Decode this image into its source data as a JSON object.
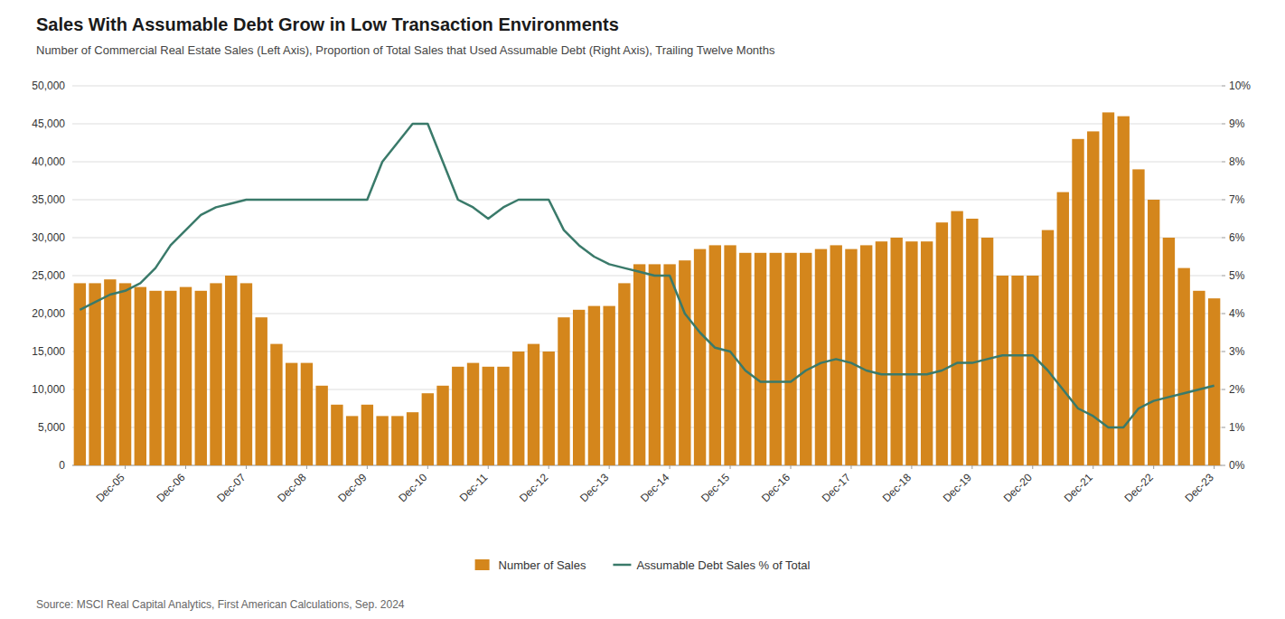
{
  "chart_data": {
    "type": "bar",
    "title": "Sales With Assumable Debt Grow in Low Transaction Environments",
    "subtitle": "Number of Commercial Real Estate Sales (Left Axis), Proportion of Total Sales that Used Assumable Debt (Right Axis), Trailing Twelve Months",
    "source": "Source: MSCI Real Capital Analytics, First American Calculations, Sep. 2024",
    "categories": [
      null,
      null,
      null,
      "Dec-05",
      null,
      null,
      null,
      "Dec-06",
      null,
      null,
      null,
      "Dec-07",
      null,
      null,
      null,
      "Dec-08",
      null,
      null,
      null,
      "Dec-09",
      null,
      null,
      null,
      "Dec-10",
      null,
      null,
      null,
      "Dec-11",
      null,
      null,
      null,
      "Dec-12",
      null,
      null,
      null,
      "Dec-13",
      null,
      null,
      null,
      "Dec-14",
      null,
      null,
      null,
      "Dec-15",
      null,
      null,
      null,
      "Dec-16",
      null,
      null,
      null,
      "Dec-17",
      null,
      null,
      null,
      "Dec-18",
      null,
      null,
      null,
      "Dec-19",
      null,
      null,
      null,
      "Dec-20",
      null,
      null,
      null,
      "Dec-21",
      null,
      null,
      null,
      "Dec-22",
      null,
      null,
      null,
      "Dec-23"
    ],
    "series": [
      {
        "name": "Number of Sales",
        "type": "bar",
        "color": "#D4861C",
        "values": [
          24000,
          24000,
          24500,
          24000,
          23500,
          23000,
          23000,
          23500,
          23000,
          24000,
          25000,
          24000,
          19500,
          16000,
          13500,
          13500,
          10500,
          8000,
          6500,
          8000,
          6500,
          6500,
          7000,
          9500,
          10500,
          13000,
          13500,
          13000,
          13000,
          15000,
          16000,
          15000,
          19500,
          20500,
          21000,
          21000,
          24000,
          26500,
          26500,
          26500,
          27000,
          28500,
          29000,
          29000,
          28000,
          28000,
          28000,
          28000,
          28000,
          28500,
          29000,
          28500,
          29000,
          29500,
          30000,
          29500,
          29500,
          32000,
          33500,
          32500,
          30000,
          25000,
          25000,
          25000,
          31000,
          36000,
          43000,
          44000,
          46500,
          46000,
          39000,
          35000,
          30000,
          26000,
          23000,
          22000
        ]
      },
      {
        "name": "Assumable Debt Sales % of Total",
        "type": "line",
        "color": "#3A7A6A",
        "axis": "y2",
        "values": [
          4.1,
          4.3,
          4.5,
          4.6,
          4.8,
          5.2,
          5.8,
          6.2,
          6.6,
          6.8,
          6.9,
          7.0,
          7.0,
          7.0,
          7.0,
          7.0,
          7.0,
          7.0,
          7.0,
          7.0,
          8.0,
          8.5,
          9.0,
          9.0,
          8.0,
          7.0,
          6.8,
          6.5,
          6.8,
          7.0,
          7.0,
          7.0,
          6.2,
          5.8,
          5.5,
          5.3,
          5.2,
          5.1,
          5.0,
          5.0,
          4.0,
          3.5,
          3.1,
          3.0,
          2.5,
          2.2,
          2.2,
          2.2,
          2.5,
          2.7,
          2.8,
          2.7,
          2.5,
          2.4,
          2.4,
          2.4,
          2.4,
          2.5,
          2.7,
          2.7,
          2.8,
          2.9,
          2.9,
          2.9,
          2.5,
          2.0,
          1.5,
          1.3,
          1.0,
          1.0,
          1.5,
          1.7,
          1.8,
          1.9,
          2.0,
          2.1
        ]
      }
    ],
    "ylim": [
      0,
      50000
    ],
    "yticks": [
      0,
      {
        "value": 5000,
        "label": "5,000"
      },
      {
        "value": 10000,
        "label": "10,000"
      },
      {
        "value": 15000,
        "label": "15,000"
      },
      {
        "value": 20000,
        "label": "20,000"
      },
      {
        "value": 25000,
        "label": "25,000"
      },
      {
        "value": 30000,
        "label": "30,000"
      },
      {
        "value": 35000,
        "label": "35,000"
      },
      {
        "value": 40000,
        "label": "40,000"
      },
      {
        "value": 45000,
        "label": "45,000"
      },
      {
        "value": 50000,
        "label": "50,000"
      }
    ],
    "y2lim": [
      0,
      10
    ],
    "y2ticks": [
      {
        "value": 0,
        "label": "0%"
      },
      {
        "value": 1,
        "label": "1%"
      },
      {
        "value": 2,
        "label": "2%"
      },
      {
        "value": 3,
        "label": "3%"
      },
      {
        "value": 4,
        "label": "4%"
      },
      {
        "value": 5,
        "label": "5%"
      },
      {
        "value": 6,
        "label": "6%"
      },
      {
        "value": 7,
        "label": "7%"
      },
      {
        "value": 8,
        "label": "8%"
      },
      {
        "value": 9,
        "label": "9%"
      },
      {
        "value": 10,
        "label": "10%"
      }
    ],
    "grid": true,
    "legend": "bottom"
  }
}
